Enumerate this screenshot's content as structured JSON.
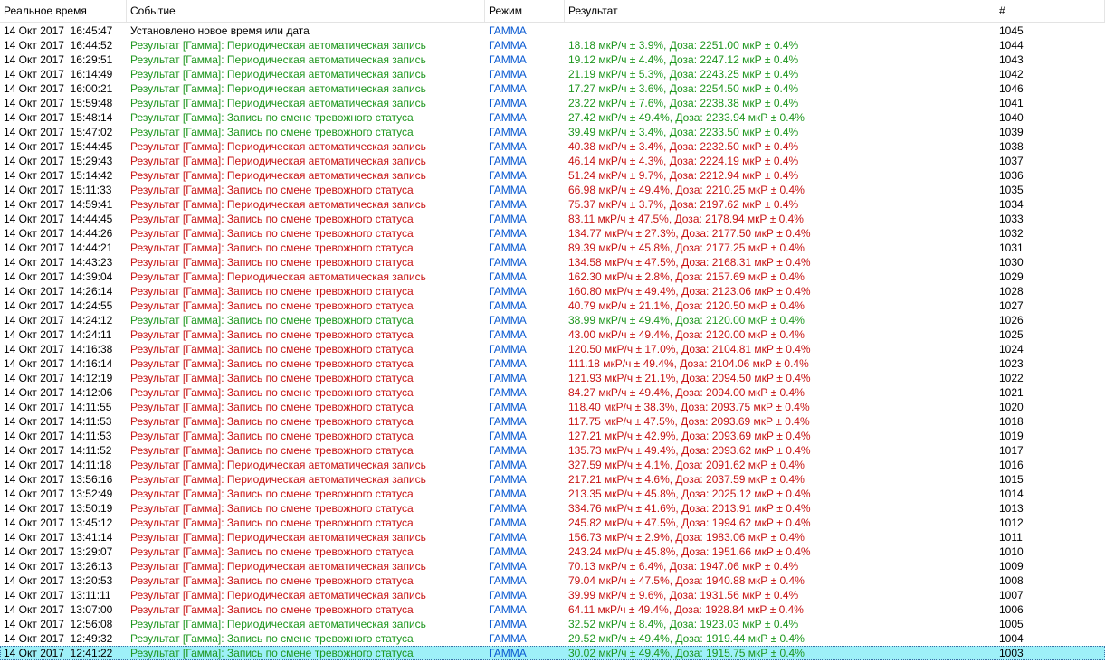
{
  "header": [
    "Реальное время",
    "Событие",
    "Режим",
    "Результат",
    "#"
  ],
  "selected_row": 43,
  "row_colors": {
    "normal": "#000000",
    "green": "#1e961e",
    "red": "#c81414"
  },
  "mode_color": "#0a5ad2",
  "rows": [
    [
      "14 Окт 2017  16:45:47",
      "Установлено новое время или дата",
      "ГАММА",
      "",
      1045,
      "normal"
    ],
    [
      "14 Окт 2017  16:44:52",
      "Результат [Гамма]: Периодическая автоматическая запись",
      "ГАММА",
      "18.18 мкР/ч ± 3.9%, Доза: 2251.00 мкР ± 0.4%",
      1044,
      "green"
    ],
    [
      "14 Окт 2017  16:29:51",
      "Результат [Гамма]: Периодическая автоматическая запись",
      "ГАММА",
      "19.12 мкР/ч ± 4.4%, Доза: 2247.12 мкР ± 0.4%",
      1043,
      "green"
    ],
    [
      "14 Окт 2017  16:14:49",
      "Результат [Гамма]: Периодическая автоматическая запись",
      "ГАММА",
      "21.19 мкР/ч ± 5.3%, Доза: 2243.25 мкР ± 0.4%",
      1042,
      "green"
    ],
    [
      "14 Окт 2017  16:00:21",
      "Результат [Гамма]: Периодическая автоматическая запись",
      "ГАММА",
      "17.27 мкР/ч ± 3.6%, Доза: 2254.50 мкР ± 0.4%",
      1046,
      "green"
    ],
    [
      "14 Окт 2017  15:59:48",
      "Результат [Гамма]: Периодическая автоматическая запись",
      "ГАММА",
      "23.22 мкР/ч ± 7.6%, Доза: 2238.38 мкР ± 0.4%",
      1041,
      "green"
    ],
    [
      "14 Окт 2017  15:48:14",
      "Результат [Гамма]: Запись по смене тревожного статуса",
      "ГАММА",
      "27.42 мкР/ч ± 49.4%, Доза: 2233.94 мкР ± 0.4%",
      1040,
      "green"
    ],
    [
      "14 Окт 2017  15:47:02",
      "Результат [Гамма]: Запись по смене тревожного статуса",
      "ГАММА",
      "39.49 мкР/ч ± 3.4%, Доза: 2233.50 мкР ± 0.4%",
      1039,
      "green"
    ],
    [
      "14 Окт 2017  15:44:45",
      "Результат [Гамма]: Периодическая автоматическая запись",
      "ГАММА",
      "40.38 мкР/ч ± 3.4%, Доза: 2232.50 мкР ± 0.4%",
      1038,
      "red"
    ],
    [
      "14 Окт 2017  15:29:43",
      "Результат [Гамма]: Периодическая автоматическая запись",
      "ГАММА",
      "46.14 мкР/ч ± 4.3%, Доза: 2224.19 мкР ± 0.4%",
      1037,
      "red"
    ],
    [
      "14 Окт 2017  15:14:42",
      "Результат [Гамма]: Периодическая автоматическая запись",
      "ГАММА",
      "51.24 мкР/ч ± 9.7%, Доза: 2212.94 мкР ± 0.4%",
      1036,
      "red"
    ],
    [
      "14 Окт 2017  15:11:33",
      "Результат [Гамма]: Запись по смене тревожного статуса",
      "ГАММА",
      "66.98 мкР/ч ± 49.4%, Доза: 2210.25 мкР ± 0.4%",
      1035,
      "red"
    ],
    [
      "14 Окт 2017  14:59:41",
      "Результат [Гамма]: Периодическая автоматическая запись",
      "ГАММА",
      "75.37 мкР/ч ± 3.7%, Доза: 2197.62 мкР ± 0.4%",
      1034,
      "red"
    ],
    [
      "14 Окт 2017  14:44:45",
      "Результат [Гамма]: Запись по смене тревожного статуса",
      "ГАММА",
      "83.11 мкР/ч ± 47.5%, Доза: 2178.94 мкР ± 0.4%",
      1033,
      "red"
    ],
    [
      "14 Окт 2017  14:44:26",
      "Результат [Гамма]: Запись по смене тревожного статуса",
      "ГАММА",
      "134.77 мкР/ч ± 27.3%, Доза: 2177.50 мкР ± 0.4%",
      1032,
      "red"
    ],
    [
      "14 Окт 2017  14:44:21",
      "Результат [Гамма]: Запись по смене тревожного статуса",
      "ГАММА",
      "89.39 мкР/ч ± 45.8%, Доза: 2177.25 мкР ± 0.4%",
      1031,
      "red"
    ],
    [
      "14 Окт 2017  14:43:23",
      "Результат [Гамма]: Запись по смене тревожного статуса",
      "ГАММА",
      "134.58 мкР/ч ± 47.5%, Доза: 2168.31 мкР ± 0.4%",
      1030,
      "red"
    ],
    [
      "14 Окт 2017  14:39:04",
      "Результат [Гамма]: Периодическая автоматическая запись",
      "ГАММА",
      "162.30 мкР/ч ± 2.8%, Доза: 2157.69 мкР ± 0.4%",
      1029,
      "red"
    ],
    [
      "14 Окт 2017  14:26:14",
      "Результат [Гамма]: Запись по смене тревожного статуса",
      "ГАММА",
      "160.80 мкР/ч ± 49.4%, Доза: 2123.06 мкР ± 0.4%",
      1028,
      "red"
    ],
    [
      "14 Окт 2017  14:24:55",
      "Результат [Гамма]: Запись по смене тревожного статуса",
      "ГАММА",
      "40.79 мкР/ч ± 21.1%, Доза: 2120.50 мкР ± 0.4%",
      1027,
      "red"
    ],
    [
      "14 Окт 2017  14:24:12",
      "Результат [Гамма]: Запись по смене тревожного статуса",
      "ГАММА",
      "38.99 мкР/ч ± 49.4%, Доза: 2120.00 мкР ± 0.4%",
      1026,
      "green"
    ],
    [
      "14 Окт 2017  14:24:11",
      "Результат [Гамма]: Запись по смене тревожного статуса",
      "ГАММА",
      "43.00 мкР/ч ± 49.4%, Доза: 2120.00 мкР ± 0.4%",
      1025,
      "red"
    ],
    [
      "14 Окт 2017  14:16:38",
      "Результат [Гамма]: Запись по смене тревожного статуса",
      "ГАММА",
      "120.50 мкР/ч ± 17.0%, Доза: 2104.81 мкР ± 0.4%",
      1024,
      "red"
    ],
    [
      "14 Окт 2017  14:16:14",
      "Результат [Гамма]: Запись по смене тревожного статуса",
      "ГАММА",
      "111.18 мкР/ч ± 49.4%, Доза: 2104.06 мкР ± 0.4%",
      1023,
      "red"
    ],
    [
      "14 Окт 2017  14:12:19",
      "Результат [Гамма]: Запись по смене тревожного статуса",
      "ГАММА",
      "121.93 мкР/ч ± 21.1%, Доза: 2094.50 мкР ± 0.4%",
      1022,
      "red"
    ],
    [
      "14 Окт 2017  14:12:06",
      "Результат [Гамма]: Запись по смене тревожного статуса",
      "ГАММА",
      "84.27 мкР/ч ± 49.4%, Доза: 2094.00 мкР ± 0.4%",
      1021,
      "red"
    ],
    [
      "14 Окт 2017  14:11:55",
      "Результат [Гамма]: Запись по смене тревожного статуса",
      "ГАММА",
      "118.40 мкР/ч ± 38.3%, Доза: 2093.75 мкР ± 0.4%",
      1020,
      "red"
    ],
    [
      "14 Окт 2017  14:11:53",
      "Результат [Гамма]: Запись по смене тревожного статуса",
      "ГАММА",
      "117.75 мкР/ч ± 47.5%, Доза: 2093.69 мкР ± 0.4%",
      1018,
      "red"
    ],
    [
      "14 Окт 2017  14:11:53",
      "Результат [Гамма]: Запись по смене тревожного статуса",
      "ГАММА",
      "127.21 мкР/ч ± 42.9%, Доза: 2093.69 мкР ± 0.4%",
      1019,
      "red"
    ],
    [
      "14 Окт 2017  14:11:52",
      "Результат [Гамма]: Запись по смене тревожного статуса",
      "ГАММА",
      "135.73 мкР/ч ± 49.4%, Доза: 2093.62 мкР ± 0.4%",
      1017,
      "red"
    ],
    [
      "14 Окт 2017  14:11:18",
      "Результат [Гамма]: Периодическая автоматическая запись",
      "ГАММА",
      "327.59 мкР/ч ± 4.1%, Доза: 2091.62 мкР ± 0.4%",
      1016,
      "red"
    ],
    [
      "14 Окт 2017  13:56:16",
      "Результат [Гамма]: Периодическая автоматическая запись",
      "ГАММА",
      "217.21 мкР/ч ± 4.6%, Доза: 2037.59 мкР ± 0.4%",
      1015,
      "red"
    ],
    [
      "14 Окт 2017  13:52:49",
      "Результат [Гамма]: Запись по смене тревожного статуса",
      "ГАММА",
      "213.35 мкР/ч ± 45.8%, Доза: 2025.12 мкР ± 0.4%",
      1014,
      "red"
    ],
    [
      "14 Окт 2017  13:50:19",
      "Результат [Гамма]: Запись по смене тревожного статуса",
      "ГАММА",
      "334.76 мкР/ч ± 41.6%, Доза: 2013.91 мкР ± 0.4%",
      1013,
      "red"
    ],
    [
      "14 Окт 2017  13:45:12",
      "Результат [Гамма]: Запись по смене тревожного статуса",
      "ГАММА",
      "245.82 мкР/ч ± 47.5%, Доза: 1994.62 мкР ± 0.4%",
      1012,
      "red"
    ],
    [
      "14 Окт 2017  13:41:14",
      "Результат [Гамма]: Периодическая автоматическая запись",
      "ГАММА",
      "156.73 мкР/ч ± 2.9%, Доза: 1983.06 мкР ± 0.4%",
      1011,
      "red"
    ],
    [
      "14 Окт 2017  13:29:07",
      "Результат [Гамма]: Запись по смене тревожного статуса",
      "ГАММА",
      "243.24 мкР/ч ± 45.8%, Доза: 1951.66 мкР ± 0.4%",
      1010,
      "red"
    ],
    [
      "14 Окт 2017  13:26:13",
      "Результат [Гамма]: Периодическая автоматическая запись",
      "ГАММА",
      "70.13 мкР/ч ± 6.4%, Доза: 1947.06 мкР ± 0.4%",
      1009,
      "red"
    ],
    [
      "14 Окт 2017  13:20:53",
      "Результат [Гамма]: Запись по смене тревожного статуса",
      "ГАММА",
      "79.04 мкР/ч ± 47.5%, Доза: 1940.88 мкР ± 0.4%",
      1008,
      "red"
    ],
    [
      "14 Окт 2017  13:11:11",
      "Результат [Гамма]: Периодическая автоматическая запись",
      "ГАММА",
      "39.99 мкР/ч ± 9.6%, Доза: 1931.56 мкР ± 0.4%",
      1007,
      "red"
    ],
    [
      "14 Окт 2017  13:07:00",
      "Результат [Гамма]: Запись по смене тревожного статуса",
      "ГАММА",
      "64.11 мкР/ч ± 49.4%, Доза: 1928.84 мкР ± 0.4%",
      1006,
      "red"
    ],
    [
      "14 Окт 2017  12:56:08",
      "Результат [Гамма]: Периодическая автоматическая запись",
      "ГАММА",
      "32.52 мкР/ч ± 8.4%, Доза: 1923.03 мкР ± 0.4%",
      1005,
      "green"
    ],
    [
      "14 Окт 2017  12:49:32",
      "Результат [Гамма]: Запись по смене тревожного статуса",
      "ГАММА",
      "29.52 мкР/ч ± 49.4%, Доза: 1919.44 мкР ± 0.4%",
      1004,
      "green"
    ],
    [
      "14 Окт 2017  12:41:22",
      "Результат [Гамма]: Запись по смене тревожного статуса",
      "ГАММА",
      "30.02 мкР/ч ± 49.4%, Доза: 1915.75 мкР ± 0.4%",
      1003,
      "green"
    ]
  ]
}
